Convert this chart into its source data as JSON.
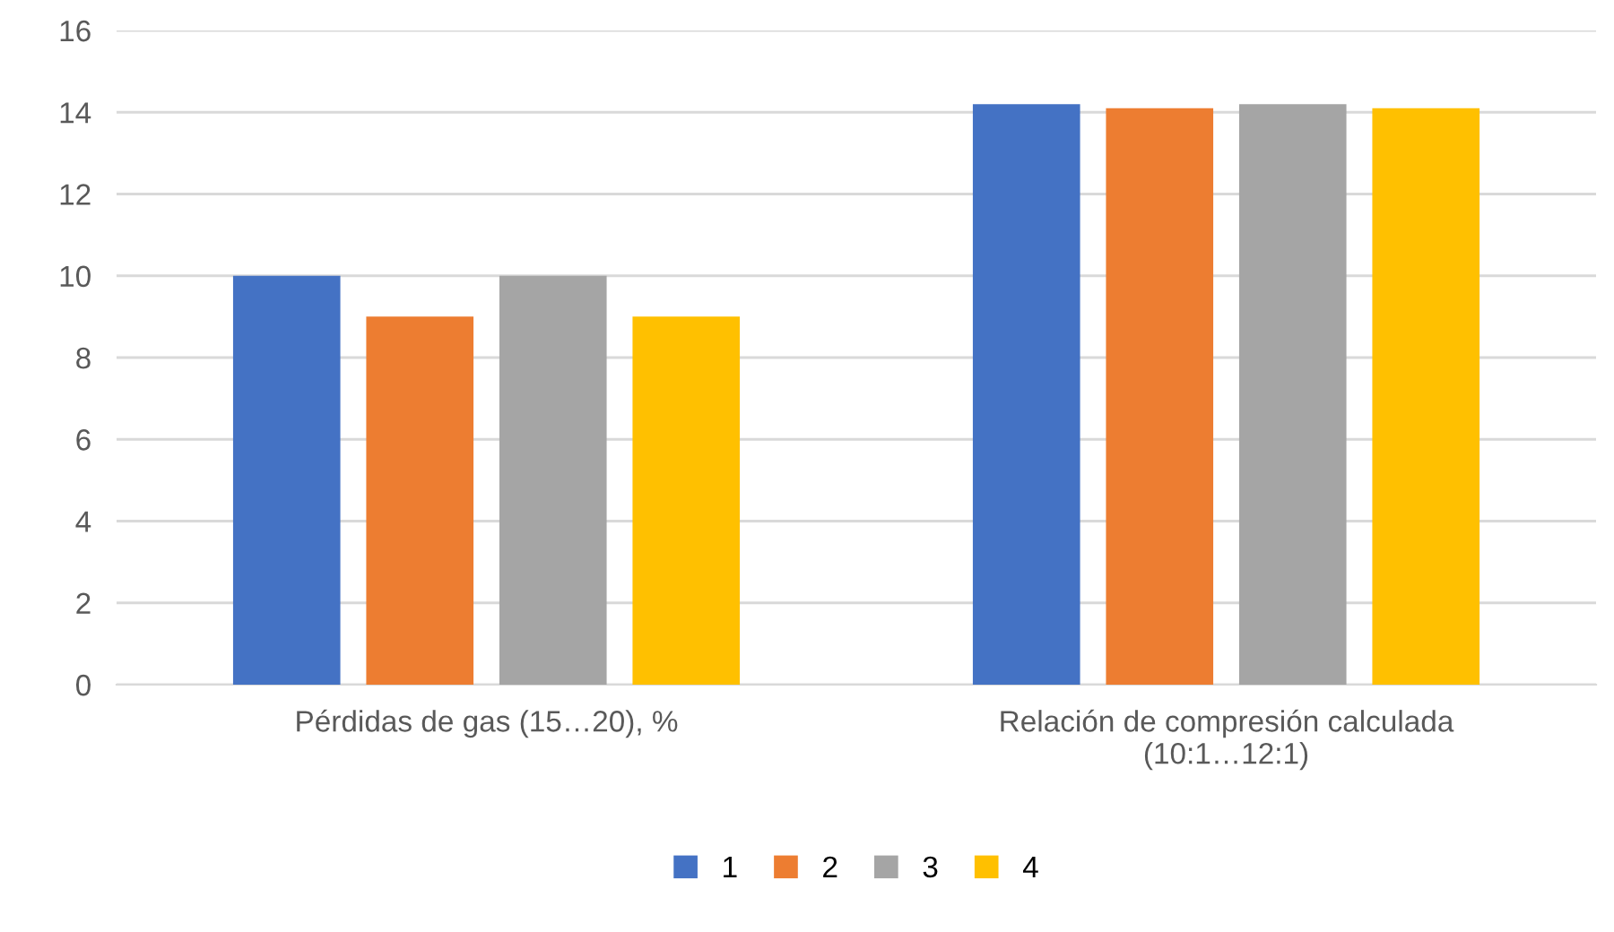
{
  "chart_data": {
    "type": "bar",
    "categories": [
      "Pérdidas de gas (15…20), %",
      "Relación de compresión calculada\n(10:1…12:1)"
    ],
    "series": [
      {
        "name": "1",
        "color": "#4472c4",
        "values": [
          10,
          14.2
        ]
      },
      {
        "name": "2",
        "color": "#ed7d31",
        "values": [
          9,
          14.1
        ]
      },
      {
        "name": "3",
        "color": "#a5a5a5",
        "values": [
          10,
          14.2
        ]
      },
      {
        "name": "4",
        "color": "#ffc000",
        "values": [
          9,
          14.1
        ]
      }
    ],
    "ylim": [
      0,
      16
    ],
    "yticks": [
      0,
      2,
      4,
      6,
      8,
      10,
      12,
      14,
      16
    ],
    "grid": "y",
    "legend": "bottom"
  }
}
